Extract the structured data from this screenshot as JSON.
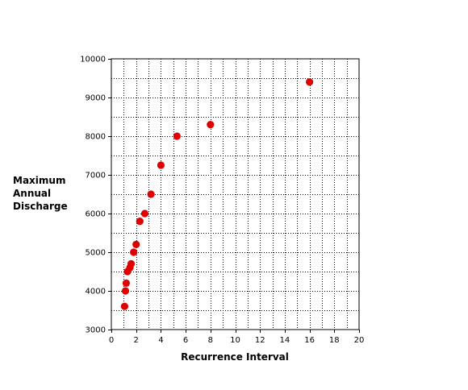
{
  "chart_data": {
    "type": "scatter",
    "xlabel": "Recurrence Interval",
    "ylabel_lines": [
      "Maximum",
      "Annual",
      "Discharge"
    ],
    "xlim": [
      0,
      20
    ],
    "ylim": [
      3000,
      10000
    ],
    "x_ticks": [
      0,
      2,
      4,
      6,
      8,
      10,
      12,
      14,
      16,
      18,
      20
    ],
    "y_ticks": [
      3000,
      4000,
      5000,
      6000,
      7000,
      8000,
      9000,
      10000
    ],
    "x_tick_labels": [
      "0",
      "2",
      "4",
      "6",
      "8",
      "10",
      "12",
      "14",
      "16",
      "18",
      "20"
    ],
    "y_tick_labels": [
      "3000",
      "4000",
      "5000",
      "6000",
      "7000",
      "8000",
      "9000",
      "10000"
    ],
    "grid": true,
    "marker_color": "#e00000",
    "points": [
      {
        "x": 16.0,
        "y": 9400
      },
      {
        "x": 8.0,
        "y": 8300
      },
      {
        "x": 5.3,
        "y": 8000
      },
      {
        "x": 4.0,
        "y": 7250
      },
      {
        "x": 3.2,
        "y": 6500
      },
      {
        "x": 2.7,
        "y": 6000
      },
      {
        "x": 2.3,
        "y": 5800
      },
      {
        "x": 2.0,
        "y": 5200
      },
      {
        "x": 1.8,
        "y": 5000
      },
      {
        "x": 1.6,
        "y": 4700
      },
      {
        "x": 1.5,
        "y": 4600
      },
      {
        "x": 1.3,
        "y": 4500
      },
      {
        "x": 1.2,
        "y": 4200
      },
      {
        "x": 1.14,
        "y": 4000
      },
      {
        "x": 1.07,
        "y": 3600
      }
    ]
  }
}
